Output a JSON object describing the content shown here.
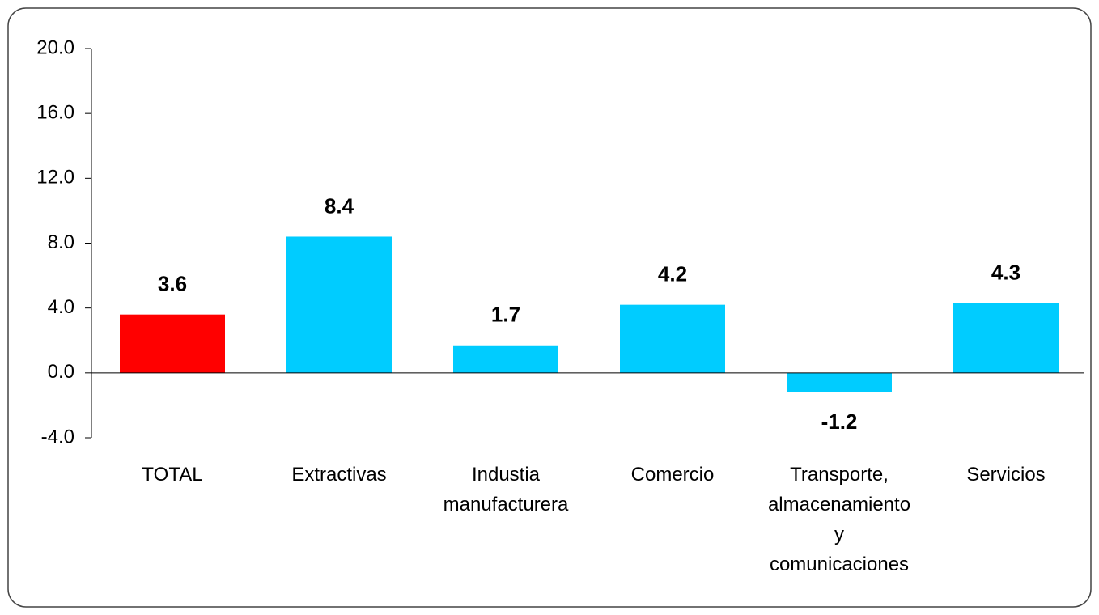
{
  "chart_data": {
    "type": "bar",
    "categories": [
      "TOTAL",
      "Extractivas",
      "Industia manufacturera",
      "Comercio",
      "Transporte, almacenamiento y comunicaciones",
      "Servicios"
    ],
    "values": [
      3.6,
      8.4,
      1.7,
      4.2,
      -1.2,
      4.3
    ],
    "colors": [
      "#ff0000",
      "#00ccff",
      "#00ccff",
      "#00ccff",
      "#00ccff",
      "#00ccff"
    ],
    "ylim": [
      -4,
      20
    ],
    "yticks": [
      {
        "value": -4,
        "label": "-4.0"
      },
      {
        "value": 0,
        "label": "0.0"
      },
      {
        "value": 4,
        "label": "4.0"
      },
      {
        "value": 8,
        "label": "8.0"
      },
      {
        "value": 12,
        "label": "12.0"
      },
      {
        "value": 16,
        "label": "16.0"
      },
      {
        "value": 20,
        "label": "20.0"
      }
    ],
    "grid": false
  }
}
